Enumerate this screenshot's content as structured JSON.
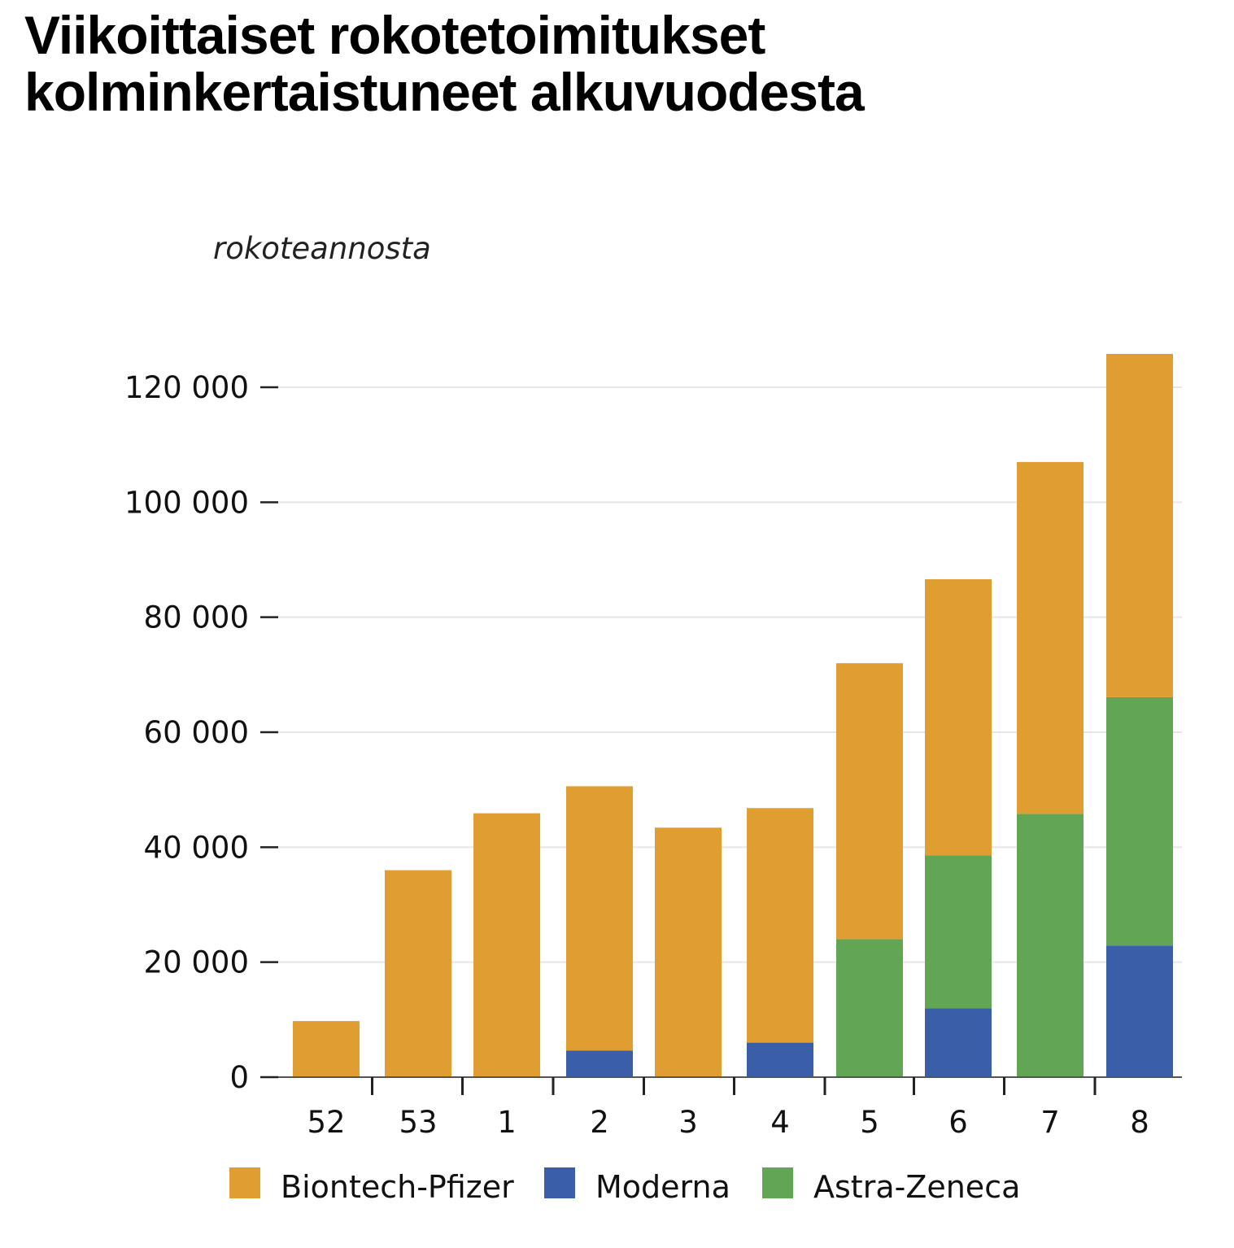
{
  "chart_data": {
    "type": "bar",
    "stacked": true,
    "title_lines": [
      "Viikoittaiset rokotetoimitukset",
      "kolminkertaistuneet alkuvuodesta"
    ],
    "ylabel": "rokoteannosta",
    "xlabel": "",
    "categories": [
      "52",
      "53",
      "1",
      "2",
      "3",
      "4",
      "5",
      "6",
      "7",
      "8"
    ],
    "series": [
      {
        "name": "Moderna",
        "color": "#3a5fa8",
        "values": [
          0,
          0,
          0,
          4600,
          0,
          6000,
          0,
          12000,
          0,
          22900
        ]
      },
      {
        "name": "Astra-Zeneca",
        "color": "#62a555",
        "values": [
          0,
          0,
          0,
          0,
          0,
          0,
          24000,
          26600,
          45800,
          43200
        ]
      },
      {
        "name": "Biontech-Pfizer",
        "color": "#e09d31",
        "values": [
          9750,
          36000,
          45900,
          46000,
          43400,
          40800,
          48000,
          48000,
          61200,
          59700
        ]
      }
    ],
    "legend_order": [
      "Biontech-Pfizer",
      "Moderna",
      "Astra-Zeneca"
    ],
    "yticks": [
      0,
      20000,
      40000,
      60000,
      80000,
      100000,
      120000
    ],
    "ytick_labels": [
      "0",
      "20 000",
      "40 000",
      "60 000",
      "80 000",
      "100 000",
      "120 000"
    ],
    "ylim": [
      0,
      126000
    ],
    "grid": true,
    "legend_placement": "bottom"
  }
}
